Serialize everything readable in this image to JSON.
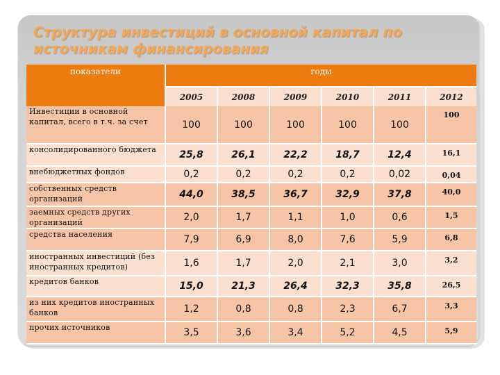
{
  "title": {
    "line1": "Структура инвестиций в основной капитал по",
    "line2": "источникам финансирования"
  },
  "table": {
    "header": {
      "labels": "показатели",
      "years_title": "годы"
    },
    "years": [
      "2005",
      "2008",
      "2009",
      "2010",
      "2011",
      "2012"
    ],
    "rows": [
      {
        "label": "Инвестиции в основной капитал, всего в т.ч. за счет",
        "values": [
          "100",
          "100",
          "100",
          "100",
          "100",
          "100"
        ]
      },
      {
        "label": "консолидированного бюджета",
        "values": [
          "25,8",
          "26,1",
          "22,2",
          "18,7",
          "12,4",
          "16,1"
        ]
      },
      {
        "label": "внебюджетных фондов",
        "values": [
          "0,2",
          "0,2",
          "0,2",
          "0,2",
          "0,02",
          "0,04"
        ]
      },
      {
        "label": "собственных средств организаций",
        "values": [
          "44,0",
          "38,5",
          "36,7",
          "32,9",
          "37,8",
          "40,0"
        ]
      },
      {
        "label": "заемных средств других организаций",
        "values": [
          "2,0",
          "1,7",
          "1,1",
          "1,0",
          "0,6",
          "1,5"
        ]
      },
      {
        "label": "средства населения",
        "values": [
          "7,9",
          "6,9",
          "8,0",
          "7,6",
          "5,9",
          "6,8"
        ]
      },
      {
        "label": "иностранных инвестиций (без иностранных кредитов)",
        "values": [
          "1,6",
          "1,7",
          "2,0",
          "2,1",
          "3,0",
          "3,2"
        ]
      },
      {
        "label": "кредитов банков",
        "values": [
          "15,0",
          "21,3",
          "26,4",
          "32,3",
          "35,8",
          "26,5"
        ]
      },
      {
        "label": " из них кредитов иностранных банков",
        "values": [
          "1,2",
          "0,8",
          "0,8",
          "2,3",
          "6,7",
          "3,3"
        ]
      },
      {
        "label": "прочих источников",
        "values": [
          "3,5",
          "3,6",
          "3,4",
          "5,2",
          "4,5",
          "5,9"
        ]
      }
    ]
  }
}
